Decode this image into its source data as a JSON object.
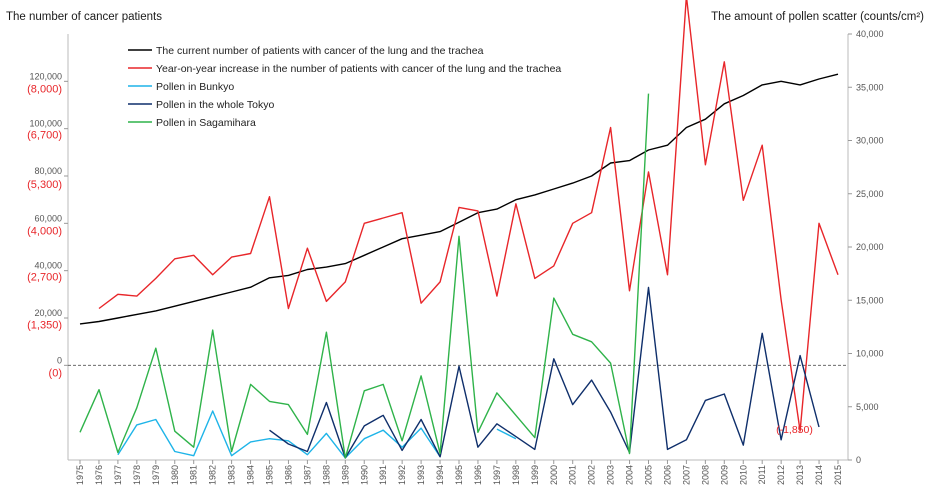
{
  "chart_data": {
    "type": "line",
    "title_left": "The number of cancer patients",
    "title_right": "The amount of pollen scatter  (counts/cm²)",
    "left_axis": {
      "ticks": [
        0,
        20000,
        40000,
        60000,
        80000,
        100000,
        120000
      ],
      "tick_labels": [
        "0",
        "20,000",
        "40,000",
        "60,000",
        "80,000",
        "100,000",
        "120,000"
      ],
      "ylim": [
        -40000,
        140000
      ]
    },
    "left_axis_secondary": {
      "ticks": [
        0,
        1350,
        2700,
        4000,
        5300,
        6700,
        8000
      ],
      "tick_labels": [
        "(0)",
        "(1,350)",
        "(2,700)",
        "(4,000)",
        "(5,300)",
        "(6,700)",
        "(8,000)"
      ],
      "color": "#e8262a"
    },
    "right_axis": {
      "ticks": [
        0,
        5000,
        10000,
        15000,
        20000,
        25000,
        30000,
        35000,
        40000
      ],
      "tick_labels": [
        "0",
        "5,000",
        "10,000",
        "15,000",
        "20,000",
        "25,000",
        "30,000",
        "35,000",
        "40,000"
      ],
      "ylim": [
        0,
        40000
      ]
    },
    "categories": [
      "1975",
      "1976",
      "1977",
      "1978",
      "1979",
      "1980",
      "1981",
      "1982",
      "1983",
      "1984",
      "1985",
      "1986",
      "1987",
      "1988",
      "1989",
      "1990",
      "1991",
      "1992",
      "1993",
      "1994",
      "1995",
      "1996",
      "1997",
      "1998",
      "1999",
      "2000",
      "2001",
      "2002",
      "2003",
      "2004",
      "2005",
      "2006",
      "2007",
      "2008",
      "2009",
      "2010",
      "2011",
      "2012",
      "2013",
      "2014",
      "2015"
    ],
    "series": [
      {
        "name": "The current number of patients with cancer of the lung and the trachea",
        "color": "#000000",
        "axis": "left",
        "values": [
          17500,
          18500,
          20000,
          21500,
          23000,
          25000,
          27000,
          29000,
          31000,
          33000,
          37000,
          38000,
          40500,
          41500,
          43000,
          46500,
          50000,
          53500,
          55000,
          56500,
          60500,
          64500,
          66000,
          70000,
          72000,
          74500,
          77000,
          80000,
          85500,
          86500,
          91000,
          93000,
          100500,
          104000,
          110500,
          114000,
          118500,
          120000,
          118500,
          121000,
          123000
        ]
      },
      {
        "name": "Year-on-year increase in the number of patients with cancer of the lung and the trachea",
        "color": "#e8262a",
        "axis": "left_secondary",
        "values": [
          null,
          1600,
          2000,
          1950,
          2450,
          3000,
          3100,
          2550,
          3050,
          3150,
          4750,
          1600,
          3300,
          1800,
          2350,
          4000,
          4150,
          4300,
          1750,
          2350,
          4450,
          4350,
          1950,
          4550,
          2450,
          2800,
          4000,
          4300,
          6700,
          2100,
          5450,
          2550,
          10400,
          5650,
          8550,
          4650,
          6200,
          1850,
          -1850,
          4000,
          2550
        ]
      },
      {
        "name": "Pollen in Bunkyo",
        "color": "#1eb4e8",
        "axis": "right",
        "values": [
          null,
          null,
          500,
          3300,
          3800,
          800,
          400,
          4600,
          400,
          1700,
          2000,
          1800,
          500,
          2500,
          200,
          2000,
          2800,
          1200,
          3000,
          300,
          null,
          null,
          2900,
          2000,
          null,
          null,
          null,
          null,
          null,
          null,
          null,
          null,
          null,
          null,
          null,
          null,
          null,
          null,
          null,
          null,
          null
        ]
      },
      {
        "name": "Pollen in the whole Tokyo",
        "color": "#0f2f6b",
        "axis": "right",
        "values": [
          null,
          null,
          null,
          null,
          null,
          null,
          null,
          null,
          null,
          null,
          2800,
          1500,
          800,
          5400,
          200,
          3200,
          4200,
          900,
          3800,
          300,
          8800,
          1200,
          3400,
          2200,
          1000,
          9500,
          5200,
          7500,
          4500,
          700,
          16200,
          1000,
          1900,
          5600,
          6200,
          1400,
          11900,
          1900,
          9800,
          3100,
          null
        ]
      },
      {
        "name": "Pollen in Sagamihara",
        "color": "#2fb34a",
        "axis": "right",
        "values": [
          2600,
          6600,
          700,
          4900,
          10500,
          2700,
          1200,
          12200,
          800,
          7100,
          5500,
          5200,
          2400,
          12000,
          200,
          6500,
          7100,
          1800,
          7900,
          600,
          21000,
          2600,
          6300,
          4200,
          2100,
          15200,
          11800,
          11100,
          9100,
          600,
          34400,
          null,
          null,
          null,
          null,
          null,
          null,
          null,
          null,
          null,
          null
        ]
      }
    ],
    "annotations": [
      {
        "text": "(-1,850)",
        "series": "Year-on-year increase in the number of patients with cancer of the lung and the trachea",
        "category": "2013"
      }
    ],
    "reference_line": {
      "value": 0,
      "style": "dashed"
    },
    "grid": false,
    "legend_position": "top-left"
  }
}
